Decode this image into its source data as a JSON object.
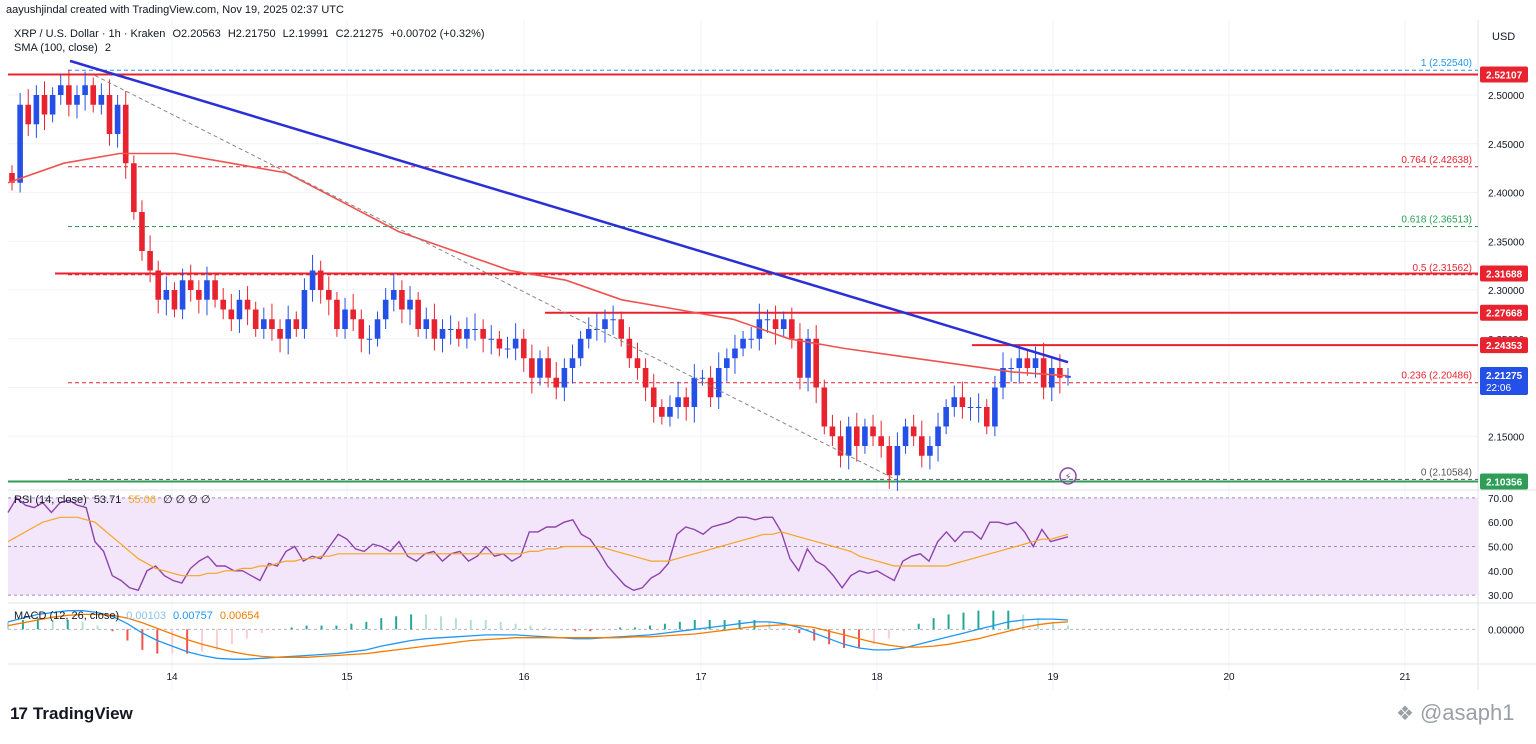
{
  "header": {
    "credit": "aayushjindal created with TradingView.com, Nov 19, 2025 02:37 UTC",
    "symbol": "XRP / U.S. Dollar · 1h · Kraken",
    "open": "O2.20563",
    "high": "H2.21750",
    "low": "L2.19991",
    "close": "C2.21275",
    "change": "+0.00702 (+0.32%)",
    "sma": "SMA (100, close)",
    "sma_count": "2"
  },
  "currency": "USD",
  "rsi_legend": {
    "label": "RSI (14, close)",
    "v1": "53.71",
    "v2": "55.06",
    "dots": "∅ ∅ ∅ ∅"
  },
  "macd_legend": {
    "label": "MACD (12, 26, close)",
    "v1": "0.00103",
    "v2": "0.00757",
    "v3": "0.00654"
  },
  "brand": {
    "logo": "17",
    "name": "TradingView"
  },
  "watermark": "@asaph1",
  "colors": {
    "up": "#2450e8",
    "down": "#e8232f",
    "sma": "#ef5350",
    "trend": "#2b2fd6",
    "green": "#2e9e57",
    "rsi": "#8e44ad",
    "signal": "#f5a623"
  },
  "chart_data": [
    {
      "type": "candlestick",
      "title": "",
      "x_ticks": [
        "14",
        "15",
        "16",
        "17",
        "18",
        "19",
        "20",
        "21"
      ],
      "y_ticks": [
        "2.50000",
        "2.45000",
        "2.40000",
        "2.35000",
        "2.30000",
        "2.25000",
        "2.15000"
      ],
      "ylim": [
        2.095,
        2.54
      ],
      "grid": true,
      "current_price": "2.21275",
      "countdown": "22:06",
      "price_tags": [
        {
          "label": "2.52107",
          "value": 2.521,
          "color": "#e8232f"
        },
        {
          "label": "2.31688",
          "value": 2.3169,
          "color": "#e8232f"
        },
        {
          "label": "2.27668",
          "value": 2.2767,
          "color": "#e8232f"
        },
        {
          "label": "2.24353",
          "value": 2.2435,
          "color": "#e8232f"
        },
        {
          "label": "2.10356",
          "value": 2.1036,
          "color": "#2e9e57"
        }
      ],
      "fib_levels": [
        {
          "label": "1 (2.52540)",
          "value": 2.5254,
          "color": "#2196f3"
        },
        {
          "label": "0.764 (2.42638)",
          "value": 2.4264,
          "color": "#e8232f"
        },
        {
          "label": "0.618 (2.36513)",
          "value": 2.3651,
          "color": "#2e9e57"
        },
        {
          "label": "0.5 (2.31562)",
          "value": 2.3156,
          "color": "#e8232f"
        },
        {
          "label": "0.236 (2.20486)",
          "value": 2.2049,
          "color": "#e8232f"
        },
        {
          "label": "0 (2.10584)",
          "value": 2.1058,
          "color": "#555555"
        }
      ],
      "closes": [
        2.41,
        2.49,
        2.47,
        2.5,
        2.48,
        2.5,
        2.51,
        2.49,
        2.5,
        2.51,
        2.49,
        2.5,
        2.46,
        2.49,
        2.43,
        2.38,
        2.34,
        2.32,
        2.29,
        2.3,
        2.28,
        2.31,
        2.3,
        2.29,
        2.31,
        2.29,
        2.28,
        2.27,
        2.29,
        2.28,
        2.26,
        2.27,
        2.26,
        2.25,
        2.27,
        2.26,
        2.3,
        2.32,
        2.3,
        2.29,
        2.26,
        2.28,
        2.27,
        2.25,
        2.25,
        2.27,
        2.29,
        2.3,
        2.28,
        2.29,
        2.26,
        2.27,
        2.25,
        2.26,
        2.26,
        2.25,
        2.26,
        2.26,
        2.25,
        2.25,
        2.24,
        2.24,
        2.25,
        2.23,
        2.21,
        2.23,
        2.21,
        2.2,
        2.22,
        2.23,
        2.25,
        2.26,
        2.26,
        2.27,
        2.27,
        2.25,
        2.23,
        2.22,
        2.2,
        2.18,
        2.17,
        2.18,
        2.19,
        2.18,
        2.21,
        2.21,
        2.19,
        2.22,
        2.23,
        2.24,
        2.25,
        2.25,
        2.27,
        2.27,
        2.26,
        2.27,
        2.25,
        2.21,
        2.25,
        2.2,
        2.16,
        2.15,
        2.13,
        2.16,
        2.14,
        2.16,
        2.15,
        2.14,
        2.11,
        2.14,
        2.16,
        2.15,
        2.13,
        2.14,
        2.16,
        2.18,
        2.19,
        2.18,
        2.18,
        2.18,
        2.16,
        2.2,
        2.22,
        2.22,
        2.23,
        2.22,
        2.23,
        2.2,
        2.22,
        2.21,
        2.212
      ],
      "sma_start": 2.41,
      "sma": [
        2.41,
        2.43,
        2.44,
        2.44,
        2.43,
        2.42,
        2.39,
        2.36,
        2.34,
        2.32,
        2.31,
        2.29,
        2.28,
        2.27,
        2.25,
        2.24,
        2.232,
        2.224,
        2.216,
        2.212
      ]
    },
    {
      "type": "line",
      "title": "RSI (14, close)",
      "y_ticks": [
        "70.00",
        "60.00",
        "50.00",
        "40.00",
        "30.00"
      ],
      "ylim": [
        28,
        72
      ],
      "band": [
        30,
        70
      ],
      "series": [
        {
          "name": "RSI (14, close)",
          "color": "#8e44ad",
          "values": [
            64,
            70,
            67,
            66,
            68,
            64,
            68,
            69,
            67,
            66,
            52,
            48,
            38,
            36,
            33,
            32,
            40,
            42,
            38,
            36,
            35,
            41,
            44,
            46,
            42,
            42,
            40,
            40,
            38,
            36,
            43,
            42,
            48,
            50,
            44,
            46,
            45,
            50,
            55,
            53,
            49,
            48,
            51,
            50,
            48,
            52,
            46,
            44,
            47,
            48,
            44,
            47,
            48,
            44,
            46,
            50,
            46,
            47,
            44,
            46,
            56,
            56,
            58,
            58,
            60,
            61,
            55,
            53,
            48,
            42,
            38,
            34,
            32,
            33,
            37,
            39,
            43,
            55,
            58,
            57,
            55,
            58,
            59,
            60,
            62,
            62,
            61,
            62,
            62,
            56,
            45,
            40,
            49,
            44,
            42,
            38,
            33,
            38,
            40,
            39,
            40,
            38,
            36,
            44,
            46,
            47,
            44,
            52,
            56,
            52,
            56,
            56,
            53,
            60,
            60,
            59,
            60,
            56,
            50,
            57,
            52,
            53,
            54
          ]
        },
        {
          "name": "",
          "color": "#f5a623",
          "values": [
            52,
            54,
            56,
            58,
            60,
            61,
            62,
            62,
            62,
            61,
            60,
            57,
            54,
            51,
            48,
            45,
            43,
            41,
            40,
            39,
            38,
            38,
            38,
            39,
            39,
            40,
            40,
            41,
            41,
            42,
            42,
            43,
            44,
            44,
            45,
            45,
            46,
            46,
            47,
            47,
            47,
            47,
            47,
            47,
            47,
            47,
            47,
            47,
            47,
            47,
            47,
            47,
            47,
            47,
            47,
            47,
            47,
            47,
            47,
            47,
            48,
            48,
            49,
            49,
            50,
            50,
            50,
            50,
            50,
            49,
            48,
            47,
            46,
            45,
            44,
            44,
            44,
            45,
            46,
            47,
            48,
            49,
            50,
            51,
            52,
            53,
            54,
            55,
            55,
            56,
            55,
            54,
            53,
            52,
            51,
            50,
            49,
            48,
            46,
            45,
            44,
            43,
            42,
            42,
            42,
            42,
            42,
            42,
            42,
            43,
            44,
            45,
            46,
            47,
            48,
            49,
            50,
            51,
            52,
            53,
            53,
            54,
            55
          ]
        }
      ]
    },
    {
      "type": "line",
      "title": "MACD (12, 26, close)",
      "y_ticks": [
        "0.00000"
      ],
      "ylim": [
        -0.035,
        0.025
      ],
      "series": [
        {
          "name": "MACD (12, 26, close)",
          "color": "#2196f3",
          "values": [
            0.008,
            0.012,
            0.016,
            0.018,
            0.02,
            0.02,
            0.018,
            0.014,
            0.006,
            -0.004,
            -0.012,
            -0.018,
            -0.024,
            -0.028,
            -0.031,
            -0.032,
            -0.032,
            -0.031,
            -0.03,
            -0.029,
            -0.028,
            -0.027,
            -0.026,
            -0.024,
            -0.022,
            -0.018,
            -0.015,
            -0.012,
            -0.01,
            -0.009,
            -0.008,
            -0.007,
            -0.006,
            -0.006,
            -0.006,
            -0.007,
            -0.008,
            -0.009,
            -0.01,
            -0.01,
            -0.009,
            -0.008,
            -0.007,
            -0.006,
            -0.004,
            -0.002,
            0.0,
            0.002,
            0.004,
            0.006,
            0.008,
            0.008,
            0.006,
            0.002,
            -0.004,
            -0.01,
            -0.016,
            -0.02,
            -0.022,
            -0.022,
            -0.02,
            -0.016,
            -0.012,
            -0.008,
            -0.004,
            0.0,
            0.004,
            0.008,
            0.01,
            0.011,
            0.011,
            0.01
          ]
        },
        {
          "name": "",
          "color": "#f57c00",
          "values": [
            0.004,
            0.007,
            0.01,
            0.013,
            0.015,
            0.016,
            0.016,
            0.015,
            0.012,
            0.007,
            0.001,
            -0.005,
            -0.011,
            -0.016,
            -0.02,
            -0.024,
            -0.027,
            -0.029,
            -0.03,
            -0.03,
            -0.03,
            -0.029,
            -0.028,
            -0.027,
            -0.026,
            -0.024,
            -0.022,
            -0.02,
            -0.018,
            -0.016,
            -0.014,
            -0.012,
            -0.011,
            -0.01,
            -0.009,
            -0.009,
            -0.009,
            -0.009,
            -0.009,
            -0.009,
            -0.009,
            -0.009,
            -0.008,
            -0.008,
            -0.007,
            -0.006,
            -0.005,
            -0.003,
            -0.001,
            0.001,
            0.003,
            0.004,
            0.005,
            0.004,
            0.002,
            -0.002,
            -0.006,
            -0.01,
            -0.014,
            -0.017,
            -0.019,
            -0.019,
            -0.018,
            -0.016,
            -0.013,
            -0.01,
            -0.006,
            -0.002,
            0.002,
            0.005,
            0.007,
            0.008
          ]
        }
      ]
    }
  ]
}
